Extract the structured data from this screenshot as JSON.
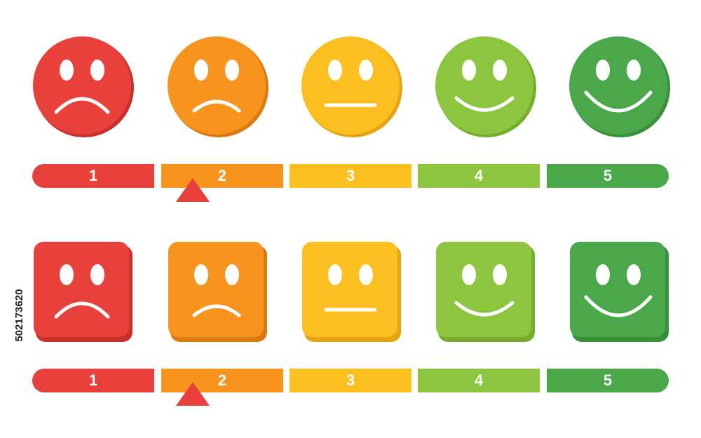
{
  "scales": [
    {
      "labels": [
        "1",
        "2",
        "3",
        "4",
        "5"
      ]
    },
    {
      "labels": [
        "1",
        "2",
        "3",
        "4",
        "5"
      ]
    }
  ],
  "side_id": "502173620"
}
